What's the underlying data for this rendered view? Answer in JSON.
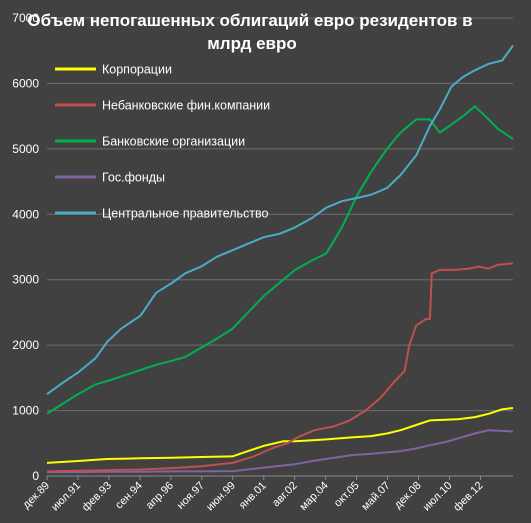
{
  "chart_data": {
    "type": "line",
    "title_line1": "Объем непогашенных облигаций евро резидентов в",
    "title_line2": "млрд евро",
    "ylim": [
      0,
      7000
    ],
    "y_ticks": [
      "0",
      "1000",
      "2000",
      "3000",
      "4000",
      "5000",
      "6000",
      "7000"
    ],
    "x_tick_labels": [
      "дек.89",
      "июл.91",
      "фев.93",
      "сен.94",
      "апр.96",
      "ноя.97",
      "июн.99",
      "янв.01",
      "авг.02",
      "мар.04",
      "окт.05",
      "май.07",
      "дек.08",
      "июл.10",
      "фев.12"
    ],
    "x_range": [
      1989.92,
      2013.75
    ],
    "grid": true,
    "legend_position": "top-left",
    "series": [
      {
        "name": "Корпорации",
        "color": "#ffff00",
        "points": [
          [
            1989.92,
            200
          ],
          [
            1991.5,
            230
          ],
          [
            1993.0,
            260
          ],
          [
            1994.7,
            270
          ],
          [
            1996.3,
            280
          ],
          [
            1997.8,
            290
          ],
          [
            1999.4,
            300
          ],
          [
            2000.2,
            380
          ],
          [
            2001.0,
            460
          ],
          [
            2002.0,
            530
          ],
          [
            2002.6,
            530
          ],
          [
            2003.5,
            545
          ],
          [
            2004.2,
            560
          ],
          [
            2005.5,
            590
          ],
          [
            2006.5,
            610
          ],
          [
            2007.3,
            650
          ],
          [
            2008.0,
            700
          ],
          [
            2008.8,
            780
          ],
          [
            2009.5,
            850
          ],
          [
            2010.3,
            860
          ],
          [
            2011.0,
            870
          ],
          [
            2011.8,
            900
          ],
          [
            2012.5,
            950
          ],
          [
            2013.2,
            1020
          ],
          [
            2013.75,
            1040
          ]
        ]
      },
      {
        "name": "Небанковские фин.компании",
        "color": "#c0504d",
        "points": [
          [
            1989.92,
            70
          ],
          [
            1991.5,
            80
          ],
          [
            1993.0,
            90
          ],
          [
            1994.7,
            100
          ],
          [
            1996.3,
            120
          ],
          [
            1997.8,
            150
          ],
          [
            1999.4,
            200
          ],
          [
            2000.5,
            300
          ],
          [
            2001.4,
            420
          ],
          [
            2002.2,
            500
          ],
          [
            2002.8,
            600
          ],
          [
            2003.6,
            700
          ],
          [
            2004.6,
            760
          ],
          [
            2005.4,
            850
          ],
          [
            2006.2,
            1000
          ],
          [
            2007.0,
            1200
          ],
          [
            2007.7,
            1450
          ],
          [
            2008.2,
            1600
          ],
          [
            2008.45,
            2000
          ],
          [
            2008.8,
            2300
          ],
          [
            2009.3,
            2400
          ],
          [
            2009.5,
            2400
          ],
          [
            2009.6,
            3100
          ],
          [
            2010.0,
            3150
          ],
          [
            2010.8,
            3150
          ],
          [
            2011.5,
            3170
          ],
          [
            2012.0,
            3200
          ],
          [
            2012.5,
            3170
          ],
          [
            2013.0,
            3230
          ],
          [
            2013.75,
            3250
          ]
        ]
      },
      {
        "name": "Банковские организации",
        "color": "#00b050",
        "points": [
          [
            1989.92,
            950
          ],
          [
            1990.7,
            1100
          ],
          [
            1991.5,
            1250
          ],
          [
            1992.4,
            1400
          ],
          [
            1993.0,
            1450
          ],
          [
            1994.0,
            1550
          ],
          [
            1994.7,
            1620
          ],
          [
            1995.5,
            1700
          ],
          [
            1996.3,
            1760
          ],
          [
            1997.0,
            1820
          ],
          [
            1997.8,
            1960
          ],
          [
            1998.5,
            2080
          ],
          [
            1999.4,
            2250
          ],
          [
            2000.2,
            2500
          ],
          [
            2001.0,
            2750
          ],
          [
            2001.8,
            2950
          ],
          [
            2002.6,
            3150
          ],
          [
            2003.5,
            3300
          ],
          [
            2004.2,
            3400
          ],
          [
            2005.0,
            3800
          ],
          [
            2005.8,
            4300
          ],
          [
            2006.5,
            4650
          ],
          [
            2007.3,
            5000
          ],
          [
            2008.0,
            5250
          ],
          [
            2008.8,
            5450
          ],
          [
            2009.5,
            5450
          ],
          [
            2010.0,
            5250
          ],
          [
            2010.5,
            5350
          ],
          [
            2011.2,
            5500
          ],
          [
            2011.8,
            5650
          ],
          [
            2012.5,
            5450
          ],
          [
            2013.0,
            5300
          ],
          [
            2013.75,
            5150
          ]
        ]
      },
      {
        "name": "Гос.фонды",
        "color": "#8064a2",
        "points": [
          [
            1989.92,
            60
          ],
          [
            1991.5,
            60
          ],
          [
            1993.0,
            65
          ],
          [
            1994.7,
            65
          ],
          [
            1996.3,
            70
          ],
          [
            1997.8,
            70
          ],
          [
            1999.4,
            75
          ],
          [
            2000.2,
            100
          ],
          [
            2001.4,
            140
          ],
          [
            2002.6,
            180
          ],
          [
            2003.5,
            230
          ],
          [
            2004.6,
            280
          ],
          [
            2005.5,
            320
          ],
          [
            2006.5,
            340
          ],
          [
            2007.3,
            360
          ],
          [
            2008.0,
            380
          ],
          [
            2008.8,
            420
          ],
          [
            2009.5,
            470
          ],
          [
            2010.3,
            520
          ],
          [
            2011.0,
            580
          ],
          [
            2011.8,
            650
          ],
          [
            2012.5,
            700
          ],
          [
            2013.2,
            690
          ],
          [
            2013.75,
            680
          ]
        ]
      },
      {
        "name": "Центральное правительство",
        "color": "#4bacc6",
        "points": [
          [
            1989.92,
            1250
          ],
          [
            1990.7,
            1420
          ],
          [
            1991.5,
            1580
          ],
          [
            1992.4,
            1800
          ],
          [
            1993.0,
            2050
          ],
          [
            1993.7,
            2250
          ],
          [
            1994.7,
            2450
          ],
          [
            1995.5,
            2800
          ],
          [
            1996.3,
            2950
          ],
          [
            1997.0,
            3100
          ],
          [
            1997.8,
            3200
          ],
          [
            1998.6,
            3350
          ],
          [
            1999.4,
            3450
          ],
          [
            2000.2,
            3550
          ],
          [
            2001.0,
            3650
          ],
          [
            2001.8,
            3700
          ],
          [
            2002.6,
            3800
          ],
          [
            2003.5,
            3950
          ],
          [
            2004.2,
            4100
          ],
          [
            2005.0,
            4200
          ],
          [
            2005.8,
            4250
          ],
          [
            2006.5,
            4300
          ],
          [
            2007.3,
            4400
          ],
          [
            2008.0,
            4600
          ],
          [
            2008.8,
            4900
          ],
          [
            2009.5,
            5350
          ],
          [
            2010.0,
            5600
          ],
          [
            2010.6,
            5950
          ],
          [
            2011.2,
            6100
          ],
          [
            2011.8,
            6200
          ],
          [
            2012.5,
            6300
          ],
          [
            2013.2,
            6350
          ],
          [
            2013.75,
            6580
          ]
        ]
      }
    ]
  }
}
